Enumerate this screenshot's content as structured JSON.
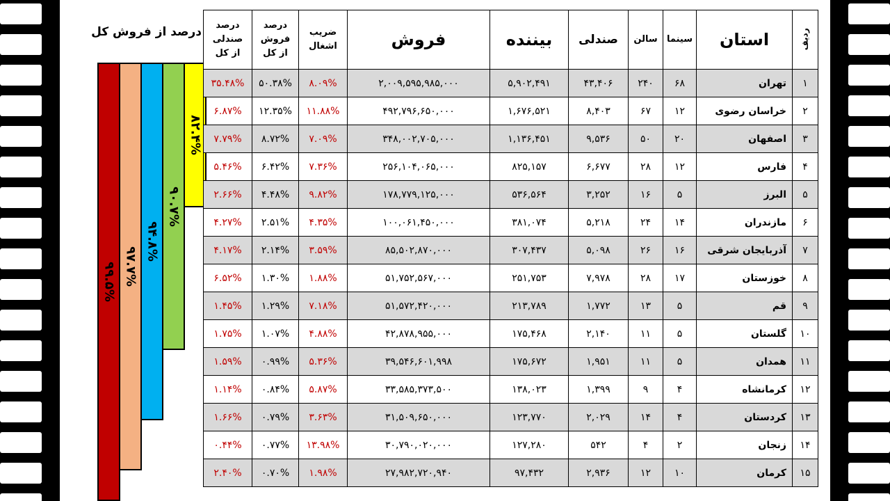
{
  "side_title": "درصد از فروش کل",
  "bars": [
    {
      "label": "۸۲.۴%",
      "value": 82.4,
      "color": "#ffff00"
    },
    {
      "label": "۹۰.۷%",
      "value": 90.7,
      "color": "#92d050"
    },
    {
      "label": "۹۴.۸%",
      "value": 94.8,
      "color": "#00b0f0"
    },
    {
      "label": "۹۷.۷%",
      "value": 97.7,
      "color": "#f4b183"
    },
    {
      "label": "۹۹.۵%",
      "value": 99.5,
      "color": "#c00000"
    }
  ],
  "headers": {
    "rank": "ردیف",
    "province": "استان",
    "cinemas": "سینما",
    "halls": "سالن",
    "seats": "صندلی",
    "viewers": "بیننده",
    "sales": "فروش",
    "occupancy": [
      "ضریب",
      "اشغال"
    ],
    "sales_share": [
      "درصد",
      "فروش",
      "از کل"
    ],
    "seat_share": [
      "درصد",
      "صندلی",
      "از کل"
    ]
  },
  "rows": [
    {
      "rank": "۱",
      "province": "تهران",
      "cinemas": "۶۸",
      "halls": "۲۴۰",
      "seats": "۴۳,۴۰۶",
      "viewers": "۵,۹۰۲,۴۹۱",
      "sales": "۲,۰۰۹,۵۹۵,۹۸۵,۰۰۰",
      "occupancy": "۸.۰۹%",
      "sales_share": "۵۰.۳۸%",
      "seat_share": "۳۵.۴۸%"
    },
    {
      "rank": "۲",
      "province": "خراسان رضوی",
      "cinemas": "۱۲",
      "halls": "۶۷",
      "seats": "۸,۴۰۳",
      "viewers": "۱,۶۷۶,۵۲۱",
      "sales": "۴۹۲,۷۹۶,۶۵۰,۰۰۰",
      "occupancy": "۱۱.۸۸%",
      "sales_share": "۱۲.۳۵%",
      "seat_share": "۶.۸۷%"
    },
    {
      "rank": "۳",
      "province": "اصفهان",
      "cinemas": "۲۰",
      "halls": "۵۰",
      "seats": "۹,۵۳۶",
      "viewers": "۱,۱۳۶,۴۵۱",
      "sales": "۳۴۸,۰۰۲,۷۰۵,۰۰۰",
      "occupancy": "۷.۰۹%",
      "sales_share": "۸.۷۲%",
      "seat_share": "۷.۷۹%"
    },
    {
      "rank": "۴",
      "province": "فارس",
      "cinemas": "۱۲",
      "halls": "۲۸",
      "seats": "۶,۶۷۷",
      "viewers": "۸۲۵,۱۵۷",
      "sales": "۲۵۶,۱۰۴,۰۶۵,۰۰۰",
      "occupancy": "۷.۳۶%",
      "sales_share": "۶.۴۲%",
      "seat_share": "۵.۴۶%"
    },
    {
      "rank": "۵",
      "province": "البرز",
      "cinemas": "۵",
      "halls": "۱۶",
      "seats": "۳,۲۵۲",
      "viewers": "۵۳۶,۵۶۴",
      "sales": "۱۷۸,۷۷۹,۱۲۵,۰۰۰",
      "occupancy": "۹.۸۲%",
      "sales_share": "۴.۴۸%",
      "seat_share": "۲.۶۶%"
    },
    {
      "rank": "۶",
      "province": "مازندران",
      "cinemas": "۱۴",
      "halls": "۲۴",
      "seats": "۵,۲۱۸",
      "viewers": "۳۸۱,۰۷۴",
      "sales": "۱۰۰,۰۶۱,۴۵۰,۰۰۰",
      "occupancy": "۴.۳۵%",
      "sales_share": "۲.۵۱%",
      "seat_share": "۴.۲۷%"
    },
    {
      "rank": "۷",
      "province": "آذربایجان شرقی",
      "cinemas": "۱۶",
      "halls": "۲۶",
      "seats": "۵,۰۹۸",
      "viewers": "۳۰۷,۴۳۷",
      "sales": "۸۵,۵۰۲,۸۷۰,۰۰۰",
      "occupancy": "۳.۵۹%",
      "sales_share": "۲.۱۴%",
      "seat_share": "۴.۱۷%"
    },
    {
      "rank": "۸",
      "province": "خوزستان",
      "cinemas": "۱۷",
      "halls": "۲۸",
      "seats": "۷,۹۷۸",
      "viewers": "۲۵۱,۷۵۳",
      "sales": "۵۱,۷۵۲,۵۶۷,۰۰۰",
      "occupancy": "۱.۸۸%",
      "sales_share": "۱.۳۰%",
      "seat_share": "۶.۵۲%"
    },
    {
      "rank": "۹",
      "province": "قم",
      "cinemas": "۵",
      "halls": "۱۳",
      "seats": "۱,۷۷۲",
      "viewers": "۲۱۳,۷۸۹",
      "sales": "۵۱,۵۷۲,۴۲۰,۰۰۰",
      "occupancy": "۷.۱۸%",
      "sales_share": "۱.۲۹%",
      "seat_share": "۱.۴۵%"
    },
    {
      "rank": "۱۰",
      "province": "گلستان",
      "cinemas": "۵",
      "halls": "۱۱",
      "seats": "۲,۱۴۰",
      "viewers": "۱۷۵,۴۶۸",
      "sales": "۴۲,۸۷۸,۹۵۵,۰۰۰",
      "occupancy": "۴.۸۸%",
      "sales_share": "۱.۰۷%",
      "seat_share": "۱.۷۵%"
    },
    {
      "rank": "۱۱",
      "province": "همدان",
      "cinemas": "۵",
      "halls": "۱۱",
      "seats": "۱,۹۵۱",
      "viewers": "۱۷۵,۶۷۲",
      "sales": "۳۹,۵۴۶,۶۰۱,۹۹۸",
      "occupancy": "۵.۳۶%",
      "sales_share": "۰.۹۹%",
      "seat_share": "۱.۵۹%"
    },
    {
      "rank": "۱۲",
      "province": "کرمانشاه",
      "cinemas": "۴",
      "halls": "۹",
      "seats": "۱,۳۹۹",
      "viewers": "۱۳۸,۰۲۳",
      "sales": "۳۳,۵۸۵,۳۷۳,۵۰۰",
      "occupancy": "۵.۸۷%",
      "sales_share": "۰.۸۴%",
      "seat_share": "۱.۱۴%"
    },
    {
      "rank": "۱۳",
      "province": "کردستان",
      "cinemas": "۴",
      "halls": "۱۴",
      "seats": "۲,۰۲۹",
      "viewers": "۱۲۳,۷۷۰",
      "sales": "۳۱,۵۰۹,۶۵۰,۰۰۰",
      "occupancy": "۳.۶۳%",
      "sales_share": "۰.۷۹%",
      "seat_share": "۱.۶۶%"
    },
    {
      "rank": "۱۴",
      "province": "زنجان",
      "cinemas": "۲",
      "halls": "۴",
      "seats": "۵۴۲",
      "viewers": "۱۲۷,۲۸۰",
      "sales": "۳۰,۷۹۰,۰۲۰,۰۰۰",
      "occupancy": "۱۳.۹۸%",
      "sales_share": "۰.۷۷%",
      "seat_share": "۰.۴۴%"
    },
    {
      "rank": "۱۵",
      "province": "کرمان",
      "cinemas": "۱۰",
      "halls": "۱۲",
      "seats": "۲,۹۳۶",
      "viewers": "۹۷,۴۳۲",
      "sales": "۲۷,۹۸۲,۷۲۰,۹۴۰",
      "occupancy": "۱.۹۸%",
      "sales_share": "۰.۷۰%",
      "seat_share": "۲.۴۰%"
    }
  ]
}
